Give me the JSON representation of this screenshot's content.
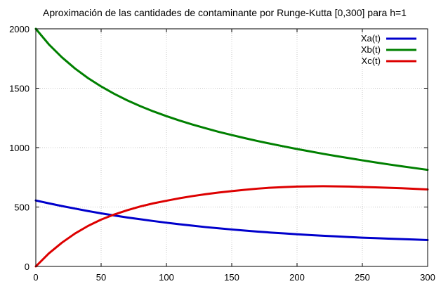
{
  "chart_data": {
    "type": "line",
    "title": "Aproximación de las cantidades de contaminante por Runge-Kutta [0,300] para h=1",
    "xlabel": "",
    "ylabel": "",
    "xlim": [
      0,
      300
    ],
    "ylim": [
      0,
      2000
    ],
    "xticks": [
      0,
      50,
      100,
      150,
      200,
      250,
      300
    ],
    "yticks": [
      0,
      500,
      1000,
      1500,
      2000
    ],
    "grid": true,
    "legend_position": "top-right",
    "series": [
      {
        "name": "Xa(t)",
        "color": "#0000cc",
        "x": [
          0,
          10,
          20,
          30,
          40,
          50,
          60,
          70,
          80,
          90,
          100,
          110,
          120,
          130,
          140,
          150,
          160,
          170,
          180,
          190,
          200,
          210,
          220,
          230,
          240,
          250,
          260,
          270,
          280,
          290,
          300
        ],
        "y": [
          555,
          531,
          508,
          487,
          466,
          447,
          429,
          412,
          397,
          382,
          368,
          355,
          343,
          331,
          321,
          311,
          302,
          293,
          285,
          278,
          271,
          264,
          258,
          253,
          247,
          242,
          238,
          234,
          230,
          226,
          222
        ]
      },
      {
        "name": "Xb(t)",
        "color": "#008000",
        "x": [
          0,
          10,
          20,
          30,
          40,
          50,
          60,
          70,
          80,
          90,
          100,
          110,
          120,
          130,
          140,
          150,
          160,
          170,
          180,
          190,
          200,
          210,
          220,
          230,
          240,
          250,
          260,
          270,
          280,
          290,
          300
        ],
        "y": [
          2000,
          1869,
          1760,
          1666,
          1585,
          1515,
          1453,
          1398,
          1349,
          1305,
          1265,
          1228,
          1194,
          1163,
          1133,
          1106,
          1080,
          1055,
          1032,
          1010,
          988,
          968,
          948,
          929,
          911,
          893,
          876,
          859,
          843,
          828,
          813
        ]
      },
      {
        "name": "Xc(t)",
        "color": "#dd0000",
        "x": [
          0,
          10,
          20,
          30,
          40,
          50,
          60,
          70,
          80,
          90,
          100,
          110,
          120,
          130,
          140,
          150,
          160,
          170,
          180,
          190,
          200,
          210,
          220,
          230,
          240,
          250,
          260,
          270,
          280,
          290,
          300
        ],
        "y": [
          0,
          110,
          200,
          277,
          341,
          394,
          437,
          473,
          505,
          531,
          553,
          574,
          592,
          608,
          622,
          634,
          645,
          655,
          663,
          668,
          672,
          674,
          675,
          674,
          672,
          669,
          666,
          662,
          658,
          653,
          648
        ]
      }
    ]
  }
}
